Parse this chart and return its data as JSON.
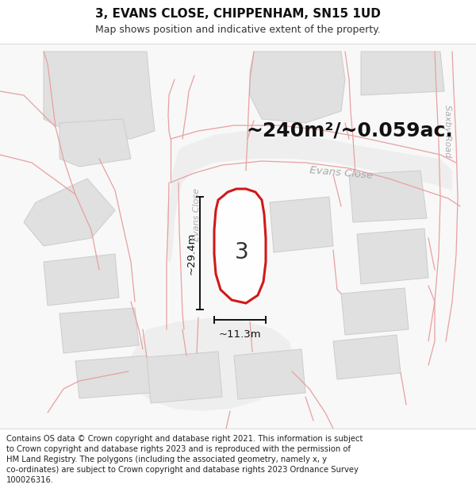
{
  "title": "3, EVANS CLOSE, CHIPPENHAM, SN15 1UD",
  "subtitle": "Map shows position and indicative extent of the property.",
  "footer_lines": [
    "Contains OS data © Crown copyright and database right 2021. This information is subject",
    "to Crown copyright and database rights 2023 and is reproduced with the permission of",
    "HM Land Registry. The polygons (including the associated geometry, namely x, y",
    "co-ordinates) are subject to Crown copyright and database rights 2023 Ordnance Survey",
    "100026316."
  ],
  "area_label": "~240m²/~0.059ac.",
  "width_label": "~11.3m",
  "height_label": "~29.4m",
  "number_label": "3",
  "map_bg": "#f8f8f8",
  "building_fill": "#e0e0e0",
  "building_edge": "#cccccc",
  "road_surface": "#efefef",
  "road_line_color": "#e8a0a0",
  "plot_outline_color": "#cc0000",
  "dim_color": "#111111",
  "road_label_color": "#aaaaaa",
  "title_fontsize": 11,
  "subtitle_fontsize": 9,
  "footer_fontsize": 7.2,
  "area_fontsize": 18,
  "number_fontsize": 20,
  "dim_fontsize": 9.5,
  "road_fontsize": 10
}
